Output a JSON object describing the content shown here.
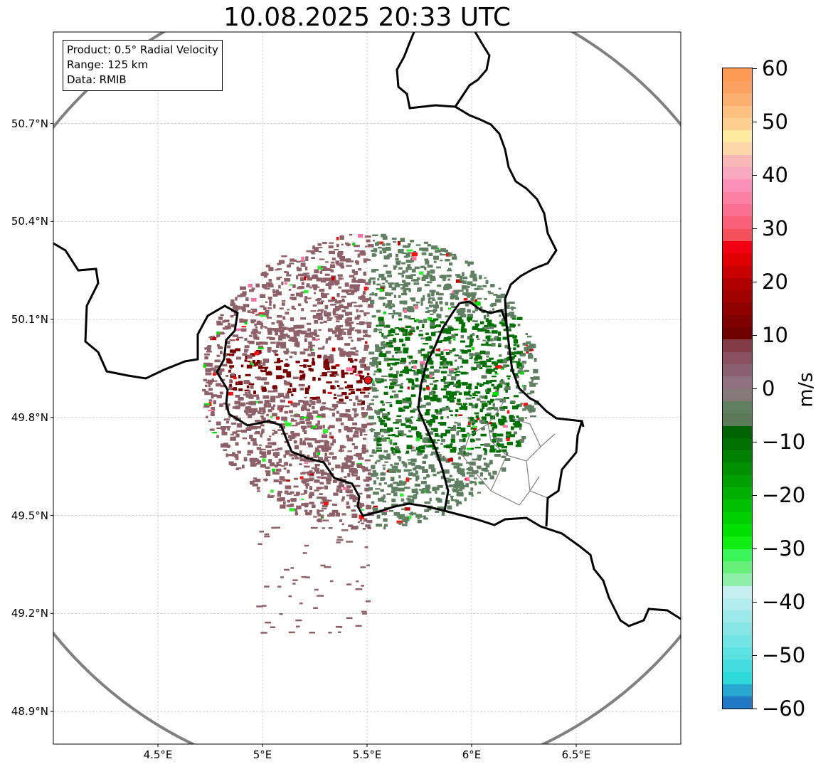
{
  "title": "10.08.2025 20:33 UTC",
  "info": {
    "product": "Product: 0.5° Radial Velocity",
    "range": "Range: 125 km",
    "data": "Data: RMIB"
  },
  "map": {
    "lon_min": 4.0,
    "lon_max": 7.0,
    "lat_min": 48.8,
    "lat_max": 50.98,
    "radar_lon": 5.505,
    "radar_lat": 49.914,
    "range_km": 125,
    "lat_ticks": [
      {
        "value": 48.9,
        "label": "48.9°N"
      },
      {
        "value": 49.2,
        "label": "49.2°N"
      },
      {
        "value": 49.5,
        "label": "49.5°N"
      },
      {
        "value": 49.8,
        "label": "49.8°N"
      },
      {
        "value": 50.1,
        "label": "50.1°N"
      },
      {
        "value": 50.4,
        "label": "50.4°N"
      },
      {
        "value": 50.7,
        "label": "50.7°N"
      }
    ],
    "lon_ticks": [
      {
        "value": 4.5,
        "label": "4.5°E"
      },
      {
        "value": 5.0,
        "label": "5°E"
      },
      {
        "value": 5.5,
        "label": "5.5°E"
      },
      {
        "value": 6.0,
        "label": "6°E"
      },
      {
        "value": 6.5,
        "label": "6.5°E"
      }
    ],
    "colors": {
      "ring": "#808080",
      "border": "#000000",
      "admin": "#808080",
      "grid": "#bbbbbb",
      "radar_site": "#e8141a",
      "outbound_core": "#7a0000",
      "outbound": "#8e6068",
      "inbound": "#5f8060",
      "inbound_core": "#007000"
    }
  },
  "colorbar": {
    "min": -60,
    "max": 60,
    "units": "m/s",
    "ticks": [
      {
        "value": 60,
        "label": "60"
      },
      {
        "value": 50,
        "label": "50"
      },
      {
        "value": 40,
        "label": "40"
      },
      {
        "value": 30,
        "label": "30"
      },
      {
        "value": 20,
        "label": "20"
      },
      {
        "value": 10,
        "label": "10"
      },
      {
        "value": 0,
        "label": "0"
      },
      {
        "value": -10,
        "label": "−10"
      },
      {
        "value": -20,
        "label": "−20"
      },
      {
        "value": -30,
        "label": "−30"
      },
      {
        "value": -40,
        "label": "−40"
      },
      {
        "value": -50,
        "label": "−50"
      },
      {
        "value": -60,
        "label": "−60"
      }
    ],
    "colors": [
      "#1f78c2",
      "#26a8d0",
      "#2ed9dc",
      "#42dcde",
      "#5de2e2",
      "#72e4e4",
      "#88e6e6",
      "#9ce9ea",
      "#b3ecee",
      "#c6f0f0",
      "#8ef0a8",
      "#66ef7a",
      "#3cf55a",
      "#10ed10",
      "#00e000",
      "#00d000",
      "#00c000",
      "#00b000",
      "#00a000",
      "#009000",
      "#008000",
      "#007000",
      "#006500",
      "#5a7a58",
      "#5f8060",
      "#857a78",
      "#8e7080",
      "#8a6070",
      "#8a5060",
      "#823c46",
      "#700000",
      "#7e0000",
      "#900000",
      "#a00000",
      "#b00000",
      "#c80000",
      "#e00000",
      "#f00010",
      "#f4505c",
      "#f86078",
      "#fa7090",
      "#fc80a0",
      "#fc90b8",
      "#f8a8c0",
      "#f8b8b8",
      "#fcd8a8",
      "#ffe8a0",
      "#fcd090",
      "#fcc080",
      "#fcb070",
      "#fca060",
      "#ff9a55"
    ]
  }
}
